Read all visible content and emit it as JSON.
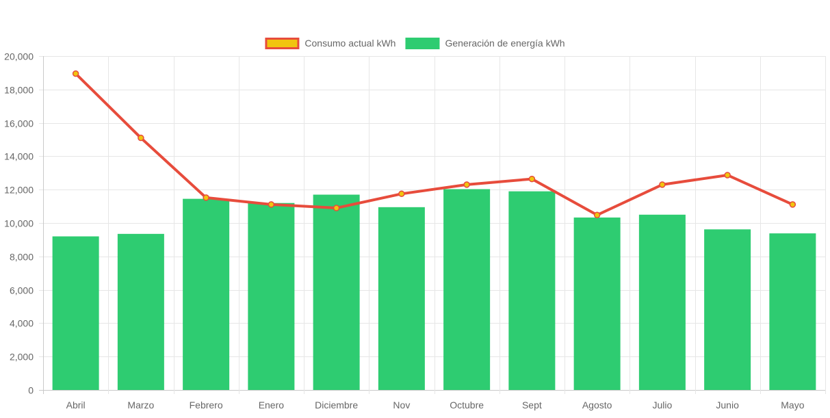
{
  "chart_data": {
    "type": "bar",
    "categories": [
      "Abril",
      "Marzo",
      "Febrero",
      "Enero",
      "Diciembre",
      "Nov",
      "Octubre",
      "Sept",
      "Agosto",
      "Julio",
      "Junio",
      "Mayo"
    ],
    "series": [
      {
        "name": "Generación de energía kWh",
        "type": "bar",
        "color": "#2ecc71",
        "values": [
          9200,
          9350,
          11450,
          11200,
          11700,
          10950,
          12030,
          11900,
          10330,
          10500,
          9620,
          9380
        ]
      },
      {
        "name": "Consumo actual kWh",
        "type": "line",
        "color": "#e74c3c",
        "point_color": "#f1c40f",
        "values": [
          18950,
          15100,
          11520,
          11110,
          10900,
          11750,
          12300,
          12640,
          10480,
          12300,
          12870,
          11110
        ]
      }
    ],
    "legend": {
      "position": "top-center",
      "entries": [
        {
          "label": "Consumo actual kWh",
          "fill": "#f1c40f",
          "border": "#e74c3c"
        },
        {
          "label": "Generación de energía kWh",
          "fill": "#2ecc71",
          "border": "#2ecc71"
        }
      ]
    },
    "yticks": [
      "0",
      "2,000",
      "4,000",
      "6,000",
      "8,000",
      "10,000",
      "12,000",
      "14,000",
      "16,000",
      "18,000",
      "20,000"
    ],
    "ylim": [
      0,
      20000
    ],
    "grid": true,
    "xlabel": "",
    "ylabel": ""
  }
}
